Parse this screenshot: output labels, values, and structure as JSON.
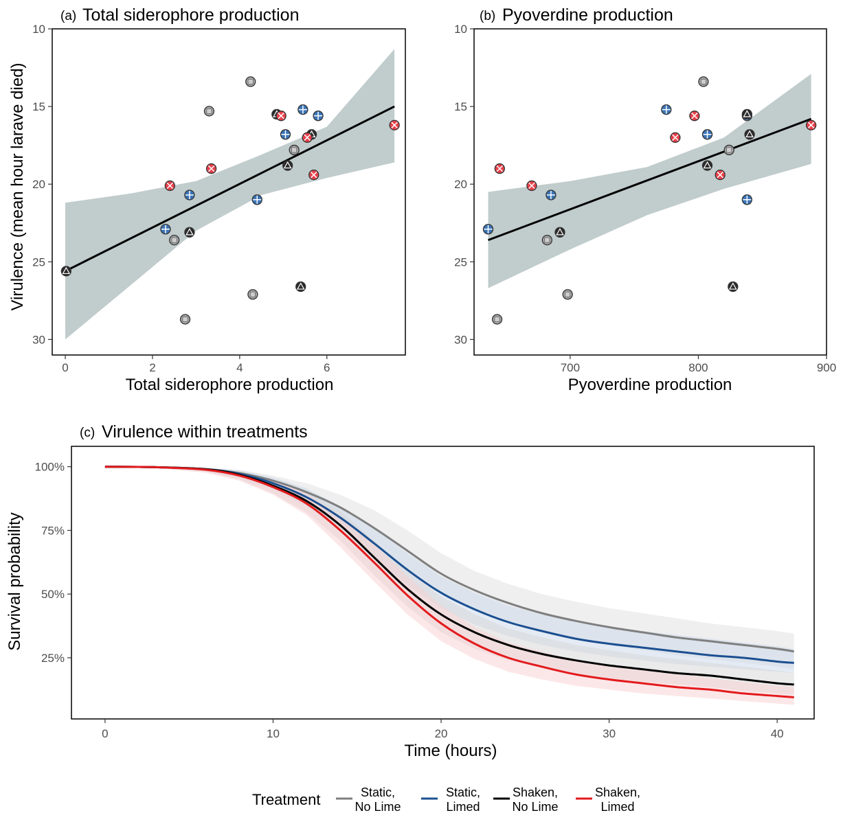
{
  "chart_data": [
    {
      "type": "scatter",
      "tag": "(a)",
      "title": "Total siderophore production",
      "xlabel": "Total siderophore production",
      "ylabel": "Virulence (mean hour larave died)",
      "xlim": [
        -0.3,
        7.8
      ],
      "ylim": [
        31,
        10
      ],
      "xticks": [
        "0",
        "2",
        "4",
        "6"
      ],
      "yticks": [
        "10",
        "15",
        "20",
        "25",
        "30"
      ],
      "y_reversed": true,
      "fit": {
        "x0": 0,
        "y0": 25.6,
        "x1": 7.55,
        "y1": 15.0
      },
      "band": {
        "xs": [
          0,
          1.5,
          3,
          4.5,
          6,
          7.55
        ],
        "lower": [
          21.2,
          20.6,
          19.8,
          18.1,
          16.3,
          11.3
        ],
        "upper": [
          30.0,
          26.5,
          23.0,
          20.7,
          19.6,
          18.6
        ]
      },
      "groups": [
        {
          "name": "Static, No Lime",
          "fill": "#a6a6a6",
          "marker": "square",
          "points": [
            [
              2.5,
              23.6
            ],
            [
              3.3,
              15.3
            ],
            [
              4.25,
              13.4
            ],
            [
              4.3,
              27.1
            ],
            [
              2.75,
              28.7
            ],
            [
              5.25,
              17.8
            ]
          ]
        },
        {
          "name": "Static, Limed",
          "fill": "#3a74b7",
          "marker": "plus",
          "points": [
            [
              2.3,
              22.9
            ],
            [
              2.85,
              20.7
            ],
            [
              4.4,
              21.0
            ],
            [
              5.05,
              16.8
            ],
            [
              5.45,
              15.2
            ],
            [
              5.8,
              15.6
            ]
          ]
        },
        {
          "name": "Shaken, No Lime",
          "fill": "#2b2b2b",
          "marker": "triangle",
          "points": [
            [
              0.02,
              25.6
            ],
            [
              2.85,
              23.1
            ],
            [
              4.85,
              15.5
            ],
            [
              5.1,
              18.8
            ],
            [
              5.4,
              26.6
            ],
            [
              5.65,
              16.8
            ]
          ]
        },
        {
          "name": "Shaken, Limed",
          "fill": "#e8414b",
          "marker": "x",
          "points": [
            [
              2.4,
              20.1
            ],
            [
              3.35,
              19.0
            ],
            [
              4.95,
              15.6
            ],
            [
              5.55,
              17.0
            ],
            [
              5.7,
              19.4
            ],
            [
              7.55,
              16.2
            ]
          ]
        }
      ]
    },
    {
      "type": "scatter",
      "tag": "(b)",
      "title": "Pyoverdine production",
      "xlabel": "Pyoverdine production",
      "ylabel": "",
      "xlim": [
        625,
        900
      ],
      "ylim": [
        31,
        10
      ],
      "xticks": [
        "700",
        "800",
        "900"
      ],
      "yticks": [
        "10",
        "15",
        "20",
        "25",
        "30"
      ],
      "y_reversed": true,
      "fit": {
        "x0": 636,
        "y0": 23.6,
        "x1": 888,
        "y1": 15.8
      },
      "band": {
        "xs": [
          636,
          700,
          760,
          820,
          888
        ],
        "lower": [
          20.5,
          19.8,
          18.9,
          17.0,
          12.9
        ],
        "upper": [
          26.7,
          24.2,
          22.0,
          20.3,
          18.7
        ]
      },
      "groups": [
        {
          "name": "Static, No Lime",
          "fill": "#a6a6a6",
          "marker": "square",
          "points": [
            [
              643,
              28.7
            ],
            [
              682,
              23.6
            ],
            [
              698,
              27.1
            ],
            [
              804,
              13.4
            ],
            [
              824,
              17.8
            ]
          ]
        },
        {
          "name": "Static, Limed",
          "fill": "#3a74b7",
          "marker": "plus",
          "points": [
            [
              636,
              22.9
            ],
            [
              685,
              20.7
            ],
            [
              775,
              15.2
            ],
            [
              807,
              16.8
            ],
            [
              838,
              21.0
            ],
            [
              838,
              15.6
            ]
          ]
        },
        {
          "name": "Shaken, No Lime",
          "fill": "#2b2b2b",
          "marker": "triangle",
          "points": [
            [
              692,
              23.1
            ],
            [
              807,
              18.8
            ],
            [
              827,
              26.6
            ],
            [
              838,
              15.5
            ],
            [
              840,
              16.8
            ]
          ]
        },
        {
          "name": "Shaken, Limed",
          "fill": "#e8414b",
          "marker": "x",
          "points": [
            [
              645,
              19.0
            ],
            [
              670,
              20.1
            ],
            [
              782,
              17.0
            ],
            [
              797,
              15.6
            ],
            [
              817,
              19.4
            ],
            [
              888,
              16.2
            ]
          ]
        }
      ]
    },
    {
      "type": "line",
      "tag": "(c)",
      "title": "Virulence within treatments",
      "xlabel": "Time (hours)",
      "ylabel": "Survival probability",
      "xlim": [
        -2,
        42.2
      ],
      "ylim": [
        1,
        108
      ],
      "xticks": [
        "0",
        "10",
        "20",
        "30",
        "40"
      ],
      "yticks": [
        "25%",
        "50%",
        "75%",
        "100%"
      ],
      "x": [
        0,
        3,
        6,
        8,
        10,
        12,
        14,
        16,
        18,
        20,
        22,
        24,
        26,
        28,
        30,
        32,
        34,
        36,
        38,
        40,
        41
      ],
      "series": [
        {
          "name": "Static, No Lime",
          "color": "#7f7f7f",
          "band": "#e0e0e0",
          "values": [
            100,
            99.8,
            99,
            97.5,
            94.5,
            90,
            84,
            76,
            67,
            58,
            51.5,
            46.5,
            42.5,
            39.5,
            37,
            35,
            33,
            31.5,
            30,
            28.5,
            27.5
          ],
          "lower": [
            100,
            99.6,
            98.2,
            96,
            92,
            86,
            78,
            69,
            60,
            51,
            44.5,
            39.5,
            35.5,
            32.5,
            30,
            28,
            26,
            24.5,
            23,
            21.5,
            20.5
          ],
          "upper": [
            100,
            99.9,
            99.6,
            98.8,
            96.5,
            93.5,
            89,
            83,
            75,
            66,
            59,
            54,
            50,
            47,
            44.5,
            42.5,
            40.5,
            38.5,
            37,
            35.5,
            34.5
          ]
        },
        {
          "name": "Static, Limed",
          "color": "#1b4f91",
          "band": "#c9d7ea",
          "values": [
            100,
            99.8,
            99,
            97.2,
            93.5,
            88,
            80,
            70,
            59.5,
            50.5,
            44,
            39,
            35.5,
            32.5,
            30.5,
            29,
            27.5,
            26,
            25,
            23.5,
            23
          ],
          "lower": [
            100,
            99.6,
            98.2,
            95.6,
            91,
            84.5,
            75,
            64,
            53.5,
            44.5,
            38,
            33.5,
            30,
            27.5,
            25.5,
            24,
            22.5,
            21.5,
            20.5,
            19.5,
            19
          ],
          "upper": [
            100,
            99.9,
            99.5,
            98.5,
            95.8,
            91.5,
            84.5,
            76,
            66,
            57,
            50.5,
            45.5,
            42,
            39,
            37,
            35.5,
            34,
            32.5,
            31,
            29.5,
            28.5
          ]
        },
        {
          "name": "Shaken, No Lime",
          "color": "#000000",
          "band": "#d6d6d6",
          "values": [
            100,
            99.8,
            99,
            96.8,
            92.5,
            86.5,
            77,
            64.5,
            52,
            42,
            35,
            30,
            26.5,
            24,
            22,
            20.5,
            19,
            18,
            16.5,
            15,
            14.5
          ],
          "lower": [
            100,
            99.6,
            98,
            95,
            89.5,
            82,
            71,
            57.5,
            45,
            35,
            28.5,
            24,
            21,
            18.5,
            17,
            15.5,
            14.5,
            13.5,
            12,
            11,
            10.5
          ],
          "upper": [
            100,
            99.9,
            99.5,
            98.2,
            95,
            90.5,
            82.5,
            71,
            59,
            49,
            42,
            36.5,
            33,
            30,
            28,
            26,
            24.5,
            23,
            21.5,
            20,
            19
          ]
        },
        {
          "name": "Shaken, Limed",
          "color": "#e31a1c",
          "band": "#f9d0d2",
          "values": [
            100,
            99.8,
            98.8,
            96.5,
            92,
            85.5,
            75,
            62.5,
            49.5,
            38.5,
            30.5,
            25,
            21.5,
            18.5,
            16.5,
            15,
            13.5,
            12.5,
            11,
            10,
            9.5
          ],
          "lower": [
            100,
            99.5,
            97.6,
            94.5,
            89,
            81,
            68.5,
            55,
            42,
            31.5,
            24.5,
            19.5,
            16.5,
            14,
            12.5,
            11,
            10,
            9,
            8,
            7,
            6.5
          ],
          "upper": [
            100,
            99.9,
            99.4,
            98,
            94.8,
            89.5,
            80.5,
            69.5,
            57,
            45.5,
            37,
            31,
            27.5,
            24,
            21.5,
            20,
            18.5,
            17,
            15.5,
            14,
            13.5
          ]
        }
      ],
      "legend": {
        "title": "Treatment",
        "placement": "bottom",
        "entries": [
          {
            "label_l1": "Static,",
            "label_l2": "No Lime",
            "color": "#7f7f7f"
          },
          {
            "label_l1": "Static,",
            "label_l2": "Limed",
            "color": "#1b4f91"
          },
          {
            "label_l1": "Shaken,",
            "label_l2": "No Lime",
            "color": "#000000"
          },
          {
            "label_l1": "Shaken,",
            "label_l2": "Limed",
            "color": "#e31a1c"
          }
        ]
      }
    }
  ]
}
